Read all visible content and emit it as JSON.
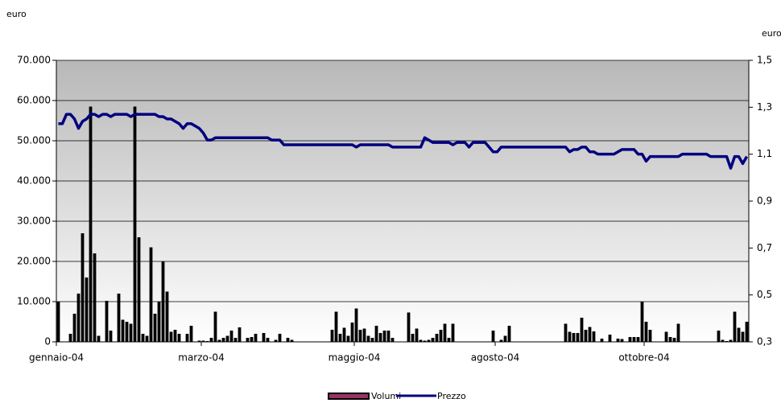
{
  "chart_data": {
    "type": "bar_line",
    "y_label": "euro",
    "y2_label": "euro",
    "categories": [
      "gennaio-04",
      null,
      null,
      null,
      null,
      null,
      null,
      null,
      null,
      null,
      null,
      null,
      null,
      null,
      null,
      null,
      null,
      null,
      null,
      null,
      null,
      null,
      null,
      null,
      null,
      null,
      null,
      null,
      null,
      null,
      null,
      null,
      null,
      null,
      null,
      null,
      "marzo-04",
      null,
      null,
      null,
      null,
      null,
      null,
      null,
      null,
      null,
      null,
      null,
      null,
      null,
      null,
      null,
      null,
      null,
      null,
      null,
      null,
      null,
      null,
      null,
      null,
      null,
      null,
      null,
      null,
      null,
      null,
      null,
      null,
      null,
      null,
      null,
      null,
      null,
      "maggio-04",
      null,
      null,
      null,
      null,
      null,
      null,
      null,
      null,
      null,
      null,
      null,
      null,
      null,
      null,
      null,
      null,
      null,
      null,
      null,
      null,
      null,
      null,
      null,
      null,
      null,
      null,
      null,
      null,
      null,
      null,
      null,
      null,
      null,
      null,
      "agosto-04",
      null,
      null,
      null,
      null,
      null,
      null,
      null,
      null,
      null,
      null,
      null,
      null,
      null,
      null,
      null,
      null,
      null,
      null,
      null,
      null,
      null,
      null,
      null,
      null,
      null,
      null,
      null,
      null,
      null,
      null,
      null,
      null,
      null,
      null,
      null,
      null,
      "ottobre-04",
      null,
      null,
      null,
      null,
      null,
      null,
      null,
      null,
      null,
      null,
      null,
      null,
      null,
      null,
      null,
      null,
      null,
      null,
      null,
      null,
      null,
      null,
      null,
      null,
      null
    ],
    "series": [
      {
        "name": "Volumi",
        "color": "#000000",
        "axis": "y",
        "values": [
          10000,
          0,
          0,
          2000,
          7000,
          12000,
          27000,
          16000,
          58500,
          22000,
          1500,
          0,
          10200,
          2800,
          0,
          12000,
          5500,
          5000,
          4500,
          58500,
          26000,
          2000,
          1500,
          23500,
          7000,
          10000,
          20000,
          12500,
          2500,
          3000,
          2000,
          0,
          2000,
          4000,
          0,
          300,
          300,
          200,
          1000,
          7500,
          500,
          1000,
          1500,
          2800,
          1000,
          3600,
          0,
          1000,
          1200,
          2000,
          0,
          2200,
          1000,
          0,
          500,
          2000,
          0,
          1000,
          500,
          0,
          0,
          0,
          0,
          0,
          0,
          0,
          0,
          0,
          3000,
          7500,
          2000,
          3500,
          1500,
          4800,
          8300,
          3000,
          3300,
          1500,
          1000,
          4000,
          2200,
          2800,
          2800,
          1000,
          0,
          0,
          0,
          7300,
          2000,
          3300,
          500,
          300,
          500,
          1000,
          2000,
          3000,
          4500,
          1000,
          4500,
          0,
          0,
          0,
          0,
          0,
          0,
          0,
          0,
          0,
          2800,
          0,
          500,
          1500,
          4000,
          0,
          0,
          0,
          0,
          0,
          0,
          0,
          0,
          0,
          0,
          0,
          0,
          0,
          4500,
          2500,
          2200,
          2200,
          6000,
          3000,
          3700,
          2600,
          0,
          800,
          0,
          1800,
          0,
          800,
          700,
          0,
          1200,
          1200,
          1200,
          10000,
          5000,
          3000,
          0,
          0,
          0,
          2500,
          1200,
          1000,
          4500,
          0,
          0,
          0,
          0,
          0,
          0,
          0,
          0,
          0,
          2800,
          500,
          200,
          500,
          7500,
          3500,
          2500,
          5000
        ]
      },
      {
        "name": "Prezzo",
        "color": "#000080",
        "axis": "y2",
        "values": [
          1.23,
          1.23,
          1.27,
          1.27,
          1.25,
          1.21,
          1.24,
          1.25,
          1.27,
          1.27,
          1.26,
          1.27,
          1.27,
          1.26,
          1.27,
          1.27,
          1.27,
          1.27,
          1.26,
          1.27,
          1.27,
          1.27,
          1.27,
          1.27,
          1.27,
          1.26,
          1.26,
          1.25,
          1.25,
          1.24,
          1.23,
          1.21,
          1.23,
          1.23,
          1.22,
          1.21,
          1.19,
          1.16,
          1.16,
          1.17,
          1.17,
          1.17,
          1.17,
          1.17,
          1.17,
          1.17,
          1.17,
          1.17,
          1.17,
          1.17,
          1.17,
          1.17,
          1.17,
          1.16,
          1.16,
          1.16,
          1.14,
          1.14,
          1.14,
          1.14,
          1.14,
          1.14,
          1.14,
          1.14,
          1.14,
          1.14,
          1.14,
          1.14,
          1.14,
          1.14,
          1.14,
          1.14,
          1.14,
          1.14,
          1.13,
          1.14,
          1.14,
          1.14,
          1.14,
          1.14,
          1.14,
          1.14,
          1.14,
          1.13,
          1.13,
          1.13,
          1.13,
          1.13,
          1.13,
          1.13,
          1.13,
          1.17,
          1.16,
          1.15,
          1.15,
          1.15,
          1.15,
          1.15,
          1.14,
          1.15,
          1.15,
          1.15,
          1.13,
          1.15,
          1.15,
          1.15,
          1.15,
          1.13,
          1.11,
          1.11,
          1.13,
          1.13,
          1.13,
          1.13,
          1.13,
          1.13,
          1.13,
          1.13,
          1.13,
          1.13,
          1.13,
          1.13,
          1.13,
          1.13,
          1.13,
          1.13,
          1.13,
          1.11,
          1.12,
          1.12,
          1.13,
          1.13,
          1.11,
          1.11,
          1.1,
          1.1,
          1.1,
          1.1,
          1.1,
          1.11,
          1.12,
          1.12,
          1.12,
          1.12,
          1.1,
          1.1,
          1.07,
          1.09,
          1.09,
          1.09,
          1.09,
          1.09,
          1.09,
          1.09,
          1.09,
          1.1,
          1.1,
          1.1,
          1.1,
          1.1,
          1.1,
          1.1,
          1.09,
          1.09,
          1.09,
          1.09,
          1.09,
          1.04,
          1.09,
          1.09,
          1.06,
          1.09
        ]
      }
    ],
    "ylim": [
      0,
      70000
    ],
    "yticks": [
      0,
      {
        "value": 10000,
        "label": "10.000"
      },
      {
        "value": 20000,
        "label": "20.000"
      },
      {
        "value": 30000,
        "label": "30.000"
      },
      {
        "value": 40000,
        "label": "40.000"
      },
      {
        "value": 50000,
        "label": "50.000"
      },
      {
        "value": 60000,
        "label": "60.000"
      },
      {
        "value": 70000,
        "label": "70.000"
      }
    ],
    "y2lim": [
      0.3,
      1.5
    ],
    "y2ticks": [
      {
        "value": 0.3,
        "label": "0,3"
      },
      {
        "value": 0.5,
        "label": "0,5"
      },
      {
        "value": 0.7,
        "label": "0,7"
      },
      {
        "value": 0.9,
        "label": "0,9"
      },
      {
        "value": 1.1,
        "label": "1,1"
      },
      {
        "value": 1.3,
        "label": "1,3"
      },
      {
        "value": 1.5,
        "label": "1,5"
      }
    ],
    "grid": true,
    "legend": "bottom"
  }
}
